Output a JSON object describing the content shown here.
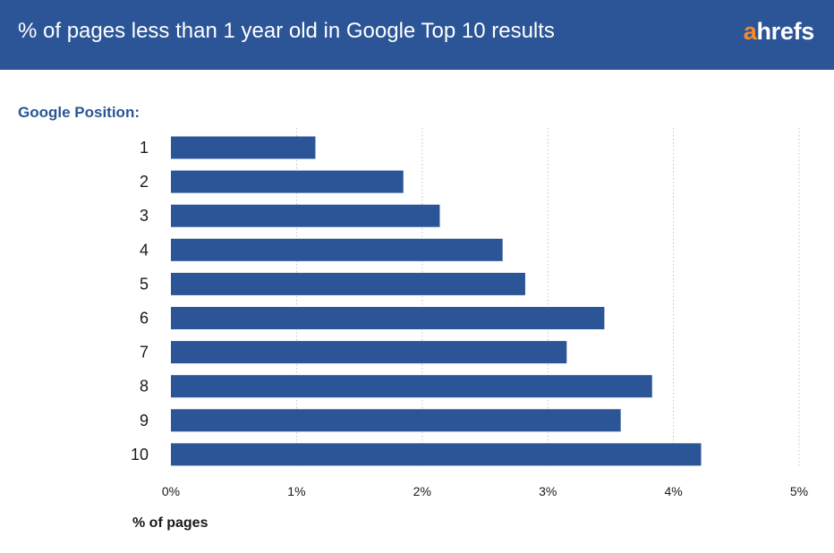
{
  "header": {
    "title": "% of pages less than 1 year old in Google Top 10 results",
    "logo_a": "a",
    "logo_rest": "hrefs",
    "background_color": "#2b5597",
    "logo_accent_color": "#f7892a"
  },
  "chart_data": {
    "type": "bar",
    "orientation": "horizontal",
    "title": "% of pages less than 1 year old in Google Top 10 results",
    "category_axis_label": "Google Position:",
    "xlabel": "% of pages",
    "categories": [
      "1",
      "2",
      "3",
      "4",
      "5",
      "6",
      "7",
      "8",
      "9",
      "10"
    ],
    "values": [
      1.15,
      1.85,
      2.14,
      2.64,
      2.82,
      3.45,
      3.15,
      3.83,
      3.58,
      4.22
    ],
    "unit": "%",
    "xlim": [
      0,
      5
    ],
    "xticks": [
      0,
      1,
      2,
      3,
      4,
      5
    ],
    "xtick_labels": [
      "0%",
      "1%",
      "2%",
      "3%",
      "4%",
      "5%"
    ],
    "grid": "vertical dotted",
    "bar_color": "#2b5597",
    "legend": "none"
  }
}
